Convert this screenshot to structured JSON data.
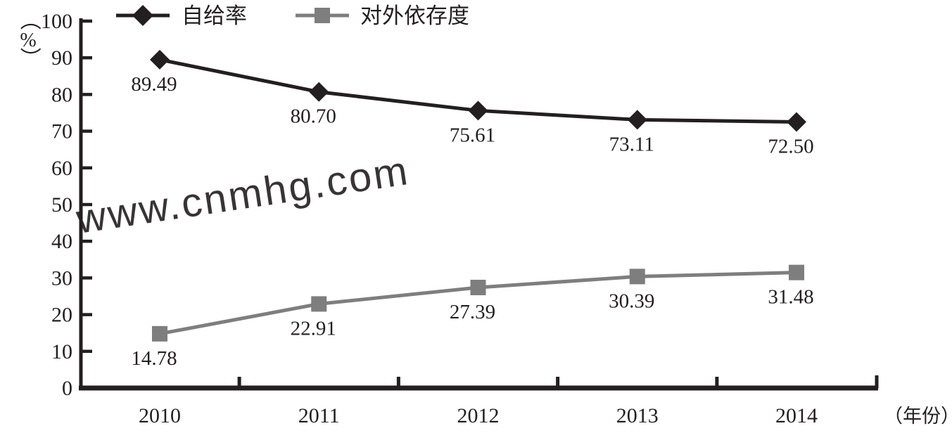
{
  "chart_data": {
    "type": "line",
    "categories": [
      "2010",
      "2011",
      "2012",
      "2013",
      "2014"
    ],
    "series": [
      {
        "name": "自给率",
        "values": [
          89.49,
          80.7,
          75.61,
          73.11,
          72.5
        ],
        "labels": [
          "89.49",
          "80.70",
          "75.61",
          "73.11",
          "72.50"
        ],
        "color": "#231f20",
        "marker": "diamond"
      },
      {
        "name": "对外依存度",
        "values": [
          14.78,
          22.91,
          27.39,
          30.39,
          31.48
        ],
        "labels": [
          "14.78",
          "22.91",
          "27.39",
          "30.39",
          "31.48"
        ],
        "color": "#7e7e7e",
        "marker": "square"
      }
    ],
    "y_axis": {
      "unit_label_parts": [
        "（",
        "%",
        "）"
      ],
      "min": 0,
      "max": 100,
      "tick_step": 10,
      "tick_labels": [
        "0",
        "10",
        "20",
        "30",
        "40",
        "50",
        "60",
        "70",
        "80",
        "90",
        "100"
      ]
    },
    "x_axis": {
      "unit_label": "（年份）"
    },
    "legend_position": "top",
    "grid": false
  },
  "watermark": {
    "text": "www.cnmhg.com",
    "color": "#f7ab98"
  }
}
